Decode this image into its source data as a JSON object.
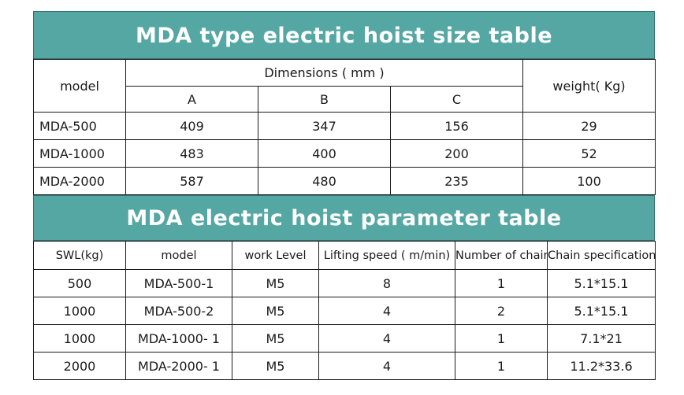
{
  "size_table": {
    "title": "MDA type electric hoist size table",
    "headers": {
      "model": "model",
      "dimensions": "Dimensions ( mm )",
      "a": "A",
      "b": "B",
      "c": "C",
      "weight": "weight( Kg)"
    },
    "rows": [
      {
        "model": "MDA-500",
        "a": "409",
        "b": "347",
        "c": "156",
        "weight": "29"
      },
      {
        "model": "MDA-1000",
        "a": "483",
        "b": "400",
        "c": "200",
        "weight": "52"
      },
      {
        "model": "MDA-2000",
        "a": "587",
        "b": "480",
        "c": "235",
        "weight": "100"
      }
    ]
  },
  "param_table": {
    "title": "MDA electric hoist parameter table",
    "headers": {
      "swl": "SWL(kg)",
      "model": "model",
      "work_level": "work Level",
      "lifting_speed": "Lifting speed ( m/min)",
      "chains": "Number of chains",
      "chain_spec": "Chain specifications"
    },
    "rows": [
      {
        "swl": "500",
        "model": "MDA-500-1",
        "work_level": "M5",
        "lifting_speed": "8",
        "chains": "1",
        "chain_spec": "5.1*15.1"
      },
      {
        "swl": "1000",
        "model": "MDA-500-2",
        "work_level": "M5",
        "lifting_speed": "4",
        "chains": "2",
        "chain_spec": "5.1*15.1"
      },
      {
        "swl": "1000",
        "model": "MDA-1000- 1",
        "work_level": "M5",
        "lifting_speed": "4",
        "chains": "1",
        "chain_spec": "7.1*21"
      },
      {
        "swl": "2000",
        "model": "MDA-2000- 1",
        "work_level": "M5",
        "lifting_speed": "4",
        "chains": "1",
        "chain_spec": "11.2*33.6"
      }
    ]
  },
  "colors": {
    "title_background": "#55a7a4",
    "title_text": "#ffffff",
    "grid_lines": "#1a1a1a"
  }
}
